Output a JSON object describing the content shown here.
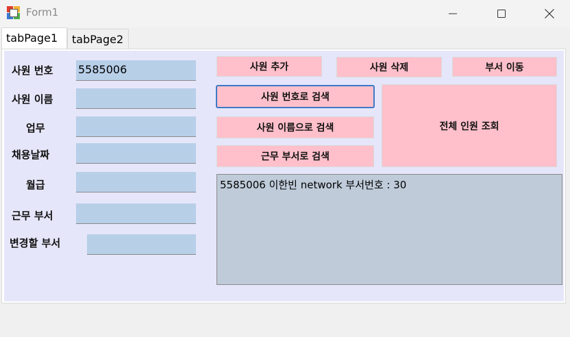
{
  "window": {
    "title": "Form1"
  },
  "tabs": [
    {
      "label": "tabPage1"
    },
    {
      "label": "tabPage2"
    }
  ],
  "form": {
    "emp_no_label": "사원 번호",
    "emp_no_value": "5585006",
    "emp_name_label": "사원 이름",
    "emp_name_value": "",
    "job_label": "업무",
    "job_value": "",
    "hire_date_label": "채용날짜",
    "hire_date_value": "",
    "salary_label": "월급",
    "salary_value": "",
    "dept_label": "근무 부서",
    "dept_value": "",
    "new_dept_label": "변경할 부서",
    "new_dept_value": ""
  },
  "buttons": {
    "add_employee": "사원 추가",
    "delete_employee": "사원 삭제",
    "move_department": "부서 이동",
    "search_by_number": "사원 번호로 검색",
    "search_by_name": "사원 이름으로 검색",
    "search_by_department": "근무 부서로 검색",
    "view_all": "전체 인원 조회"
  },
  "results": {
    "line1": "5585006 이한빈 network 부서번호 : 30"
  },
  "colors": {
    "tab_background": "#e6e6fa",
    "button_pink": "#ffc0cb",
    "textbox_blue": "#b8cfe8",
    "result_background": "#bfcbd9",
    "focus_border": "#3c78c8"
  },
  "icons": {
    "app": "winforms-app-icon",
    "minimize": "minimize-icon",
    "maximize": "maximize-icon",
    "close": "close-icon"
  }
}
